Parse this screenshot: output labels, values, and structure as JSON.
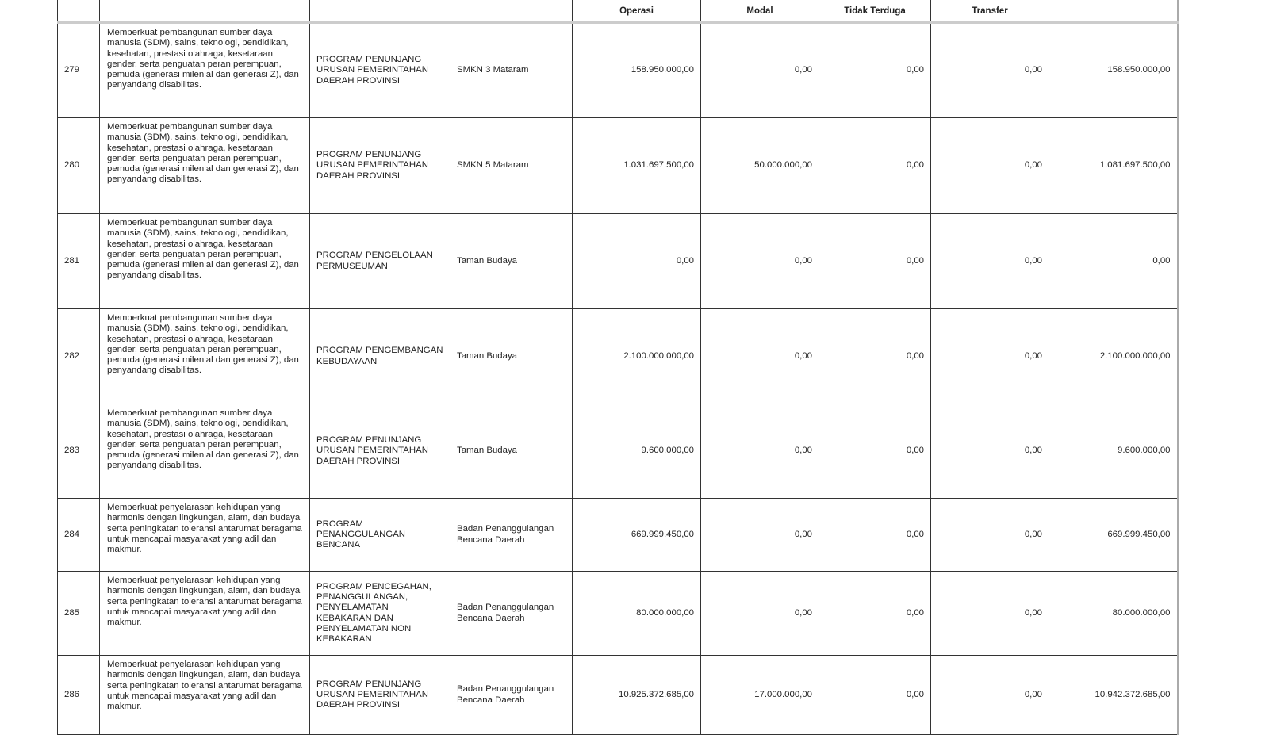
{
  "header": {
    "columns": [
      "",
      "",
      "",
      "",
      "Operasi",
      "Modal",
      "Tidak Terduga",
      "Transfer",
      ""
    ]
  },
  "rows": [
    {
      "no": "279",
      "desc": "Memperkuat pembangunan sumber daya manusia (SDM), sains, teknologi, pendidikan, kesehatan, prestasi olahraga, kesetaraan gender, serta penguatan peran perempuan, pemuda (generasi milenial dan generasi Z), dan penyandang disabilitas.",
      "program": "PROGRAM PENUNJANG URUSAN PEMERINTAHAN DAERAH PROVINSI",
      "unit": "SMKN 3 Mataram",
      "operasi": "158.950.000,00",
      "modal": "0,00",
      "tidak_terduga": "0,00",
      "transfer": "0,00",
      "total": "158.950.000,00"
    },
    {
      "no": "280",
      "desc": "Memperkuat pembangunan sumber daya manusia (SDM), sains, teknologi, pendidikan, kesehatan, prestasi olahraga, kesetaraan gender, serta penguatan peran perempuan, pemuda (generasi milenial dan generasi Z), dan penyandang disabilitas.",
      "program": "PROGRAM PENUNJANG URUSAN PEMERINTAHAN DAERAH PROVINSI",
      "unit": "SMKN 5 Mataram",
      "operasi": "1.031.697.500,00",
      "modal": "50.000.000,00",
      "tidak_terduga": "0,00",
      "transfer": "0,00",
      "total": "1.081.697.500,00"
    },
    {
      "no": "281",
      "desc": "Memperkuat pembangunan sumber daya manusia (SDM), sains, teknologi, pendidikan, kesehatan, prestasi olahraga, kesetaraan gender, serta penguatan peran perempuan, pemuda (generasi milenial dan generasi Z), dan penyandang disabilitas.",
      "program": "PROGRAM PENGELOLAAN PERMUSEUMAN",
      "unit": "Taman Budaya",
      "operasi": "0,00",
      "modal": "0,00",
      "tidak_terduga": "0,00",
      "transfer": "0,00",
      "total": "0,00"
    },
    {
      "no": "282",
      "desc": "Memperkuat pembangunan sumber daya manusia (SDM), sains, teknologi, pendidikan, kesehatan, prestasi olahraga, kesetaraan gender, serta penguatan peran perempuan, pemuda (generasi milenial dan generasi Z), dan penyandang disabilitas.",
      "program": "PROGRAM PENGEMBANGAN KEBUDAYAAN",
      "unit": "Taman Budaya",
      "operasi": "2.100.000.000,00",
      "modal": "0,00",
      "tidak_terduga": "0,00",
      "transfer": "0,00",
      "total": "2.100.000.000,00"
    },
    {
      "no": "283",
      "desc": "Memperkuat pembangunan sumber daya manusia (SDM), sains, teknologi, pendidikan, kesehatan, prestasi olahraga, kesetaraan gender, serta penguatan peran perempuan, pemuda (generasi milenial dan generasi Z), dan penyandang disabilitas.",
      "program": "PROGRAM PENUNJANG URUSAN PEMERINTAHAN DAERAH PROVINSI",
      "unit": "Taman Budaya",
      "operasi": "9.600.000,00",
      "modal": "0,00",
      "tidak_terduga": "0,00",
      "transfer": "0,00",
      "total": "9.600.000,00"
    },
    {
      "no": "284",
      "desc": "Memperkuat penyelarasan kehidupan yang harmonis dengan lingkungan, alam, dan budaya serta peningkatan toleransi antarumat beragama untuk mencapai masyarakat yang adil dan makmur.",
      "program": "PROGRAM PENANGGULANGAN BENCANA",
      "unit": "Badan Penanggulangan Bencana Daerah",
      "operasi": "669.999.450,00",
      "modal": "0,00",
      "tidak_terduga": "0,00",
      "transfer": "0,00",
      "total": "669.999.450,00"
    },
    {
      "no": "285",
      "desc": "Memperkuat penyelarasan kehidupan yang harmonis dengan lingkungan, alam, dan budaya serta peningkatan toleransi antarumat beragama untuk mencapai masyarakat yang adil dan makmur.",
      "program": "PROGRAM PENCEGAHAN, PENANGGULANGAN, PENYELAMATAN KEBAKARAN DAN PENYELAMATAN NON KEBAKARAN",
      "unit": "Badan Penanggulangan Bencana Daerah",
      "operasi": "80.000.000,00",
      "modal": "0,00",
      "tidak_terduga": "0,00",
      "transfer": "0,00",
      "total": "80.000.000,00"
    },
    {
      "no": "286",
      "desc": "Memperkuat penyelarasan kehidupan yang harmonis dengan lingkungan, alam, dan budaya serta peningkatan toleransi antarumat beragama untuk mencapai masyarakat yang adil dan makmur.",
      "program": "PROGRAM PENUNJANG URUSAN PEMERINTAHAN DAERAH PROVINSI",
      "unit": "Badan Penanggulangan Bencana Daerah",
      "operasi": "10.925.372.685,00",
      "modal": "17.000.000,00",
      "tidak_terduga": "0,00",
      "transfer": "0,00",
      "total": "10.942.372.685,00"
    }
  ]
}
